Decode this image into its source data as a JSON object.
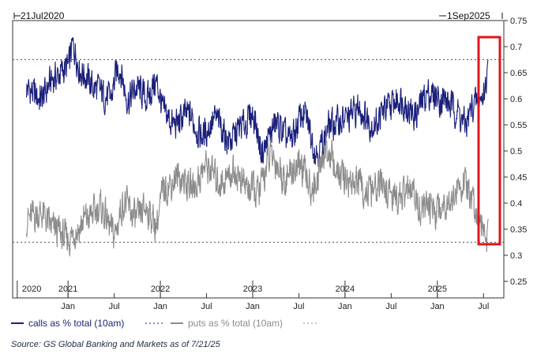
{
  "chart_data": {
    "type": "line",
    "range_start_label": "21Jul2020",
    "range_end_label": "1Sep2025",
    "y_ticks": [
      "0.75",
      "0.7",
      "0.65",
      "0.6",
      "0.55",
      "0.5",
      "0.45",
      "0.4",
      "0.35",
      "0.3",
      "0.25"
    ],
    "ylim": [
      0.25,
      0.75
    ],
    "x_month_labels": [
      "Jan",
      "Jul",
      "Jan",
      "Jul",
      "Jan",
      "Jul",
      "Jan",
      "Jul",
      "Jan",
      "Jul"
    ],
    "x_year_labels": [
      "2020",
      "2021",
      "2022",
      "2023",
      "2024",
      "2025"
    ],
    "grid": false,
    "reference_lines": [
      0.675,
      0.325
    ],
    "series": [
      {
        "name": "calls as % total (10am)",
        "color": "#1a1f7a",
        "anchors": [
          [
            2020.55,
            0.62
          ],
          [
            2020.7,
            0.6
          ],
          [
            2020.85,
            0.64
          ],
          [
            2021.0,
            0.66
          ],
          [
            2021.05,
            0.7
          ],
          [
            2021.15,
            0.65
          ],
          [
            2021.3,
            0.62
          ],
          [
            2021.45,
            0.6
          ],
          [
            2021.55,
            0.66
          ],
          [
            2021.65,
            0.6
          ],
          [
            2021.75,
            0.62
          ],
          [
            2021.85,
            0.6
          ],
          [
            2021.95,
            0.63
          ],
          [
            2022.05,
            0.57
          ],
          [
            2022.15,
            0.55
          ],
          [
            2022.3,
            0.57
          ],
          [
            2022.45,
            0.53
          ],
          [
            2022.6,
            0.56
          ],
          [
            2022.75,
            0.52
          ],
          [
            2022.9,
            0.55
          ],
          [
            2023.0,
            0.57
          ],
          [
            2023.1,
            0.5
          ],
          [
            2023.25,
            0.55
          ],
          [
            2023.4,
            0.52
          ],
          [
            2023.55,
            0.57
          ],
          [
            2023.7,
            0.5
          ],
          [
            2023.85,
            0.55
          ],
          [
            2024.0,
            0.56
          ],
          [
            2024.15,
            0.58
          ],
          [
            2024.3,
            0.55
          ],
          [
            2024.45,
            0.58
          ],
          [
            2024.6,
            0.6
          ],
          [
            2024.75,
            0.57
          ],
          [
            2024.9,
            0.61
          ],
          [
            2025.05,
            0.6
          ],
          [
            2025.2,
            0.58
          ],
          [
            2025.3,
            0.55
          ],
          [
            2025.4,
            0.59
          ],
          [
            2025.48,
            0.6
          ],
          [
            2025.52,
            0.62
          ],
          [
            2025.55,
            0.675
          ]
        ]
      },
      {
        "name": "puts as % total (10am)",
        "color": "#8c8c8c",
        "anchors": [
          [
            2020.55,
            0.37
          ],
          [
            2020.7,
            0.38
          ],
          [
            2020.85,
            0.35
          ],
          [
            2021.0,
            0.33
          ],
          [
            2021.1,
            0.35
          ],
          [
            2021.2,
            0.37
          ],
          [
            2021.35,
            0.39
          ],
          [
            2021.5,
            0.34
          ],
          [
            2021.6,
            0.4
          ],
          [
            2021.75,
            0.37
          ],
          [
            2021.85,
            0.39
          ],
          [
            2021.95,
            0.36
          ],
          [
            2022.05,
            0.43
          ],
          [
            2022.2,
            0.45
          ],
          [
            2022.35,
            0.43
          ],
          [
            2022.5,
            0.47
          ],
          [
            2022.65,
            0.44
          ],
          [
            2022.8,
            0.46
          ],
          [
            2022.95,
            0.43
          ],
          [
            2023.05,
            0.42
          ],
          [
            2023.2,
            0.49
          ],
          [
            2023.35,
            0.45
          ],
          [
            2023.5,
            0.47
          ],
          [
            2023.65,
            0.43
          ],
          [
            2023.8,
            0.5
          ],
          [
            2023.95,
            0.45
          ],
          [
            2024.1,
            0.44
          ],
          [
            2024.25,
            0.42
          ],
          [
            2024.4,
            0.43
          ],
          [
            2024.55,
            0.41
          ],
          [
            2024.7,
            0.42
          ],
          [
            2024.85,
            0.39
          ],
          [
            2025.0,
            0.39
          ],
          [
            2025.15,
            0.41
          ],
          [
            2025.28,
            0.44
          ],
          [
            2025.38,
            0.4
          ],
          [
            2025.45,
            0.38
          ],
          [
            2025.5,
            0.37
          ],
          [
            2025.53,
            0.325
          ],
          [
            2025.55,
            0.37
          ]
        ]
      }
    ],
    "annotation": "red box highlighting July 2025"
  },
  "source_text": "Source: GS Global Banking and Markets as of 7/21/25"
}
